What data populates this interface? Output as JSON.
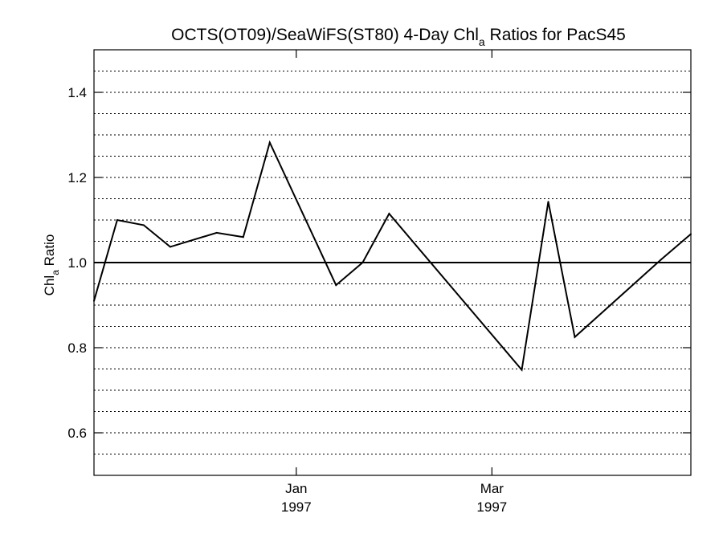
{
  "chart_data": {
    "type": "line",
    "title_main": "OCTS(OT09)/SeaWiFS(ST80) 4-Day Chl",
    "title_sub": "a",
    "title_end": " Ratios for PacS45",
    "ylabel_main": "Chl",
    "ylabel_sub": "a",
    "ylabel_end": " Ratio",
    "ylim": [
      0.5,
      1.5
    ],
    "yticks": [
      0.6,
      0.8,
      1.0,
      1.2,
      1.4
    ],
    "ytick_labels": [
      "0.6",
      "0.8",
      "1.0",
      "1.2",
      "1.4"
    ],
    "gridlines": [
      0.55,
      0.6,
      0.65,
      0.7,
      0.75,
      0.8,
      0.85,
      0.9,
      0.95,
      1.05,
      1.1,
      1.15,
      1.2,
      1.25,
      1.3,
      1.35,
      1.4,
      1.45
    ],
    "reference_line": 1.0,
    "xlim": [
      "1996-11-01",
      "1997-04-30"
    ],
    "xticks": [
      {
        "date": "1997-01-01",
        "month": "Jan",
        "year": "1997"
      },
      {
        "date": "1997-03-01",
        "month": "Mar",
        "year": "1997"
      }
    ],
    "series": [
      {
        "color": "#000000",
        "points": [
          {
            "x": "1996-11-01",
            "y": 0.91
          },
          {
            "x": "1996-11-08",
            "y": 1.1
          },
          {
            "x": "1996-11-16",
            "y": 1.088
          },
          {
            "x": "1996-11-24",
            "y": 1.037
          },
          {
            "x": "1996-12-08",
            "y": 1.07
          },
          {
            "x": "1996-12-16",
            "y": 1.06
          },
          {
            "x": "1996-12-24",
            "y": 1.282
          },
          {
            "x": "1997-01-13",
            "y": 0.947
          },
          {
            "x": "1997-01-21",
            "y": 1.0
          },
          {
            "x": "1997-01-29",
            "y": 1.115
          },
          {
            "x": "1997-03-10",
            "y": 0.748
          },
          {
            "x": "1997-03-18",
            "y": 1.143
          },
          {
            "x": "1997-03-26",
            "y": 0.825
          },
          {
            "x": "1997-04-21",
            "y": 1.007
          },
          {
            "x": "1997-04-30",
            "y": 1.067
          }
        ]
      }
    ]
  }
}
